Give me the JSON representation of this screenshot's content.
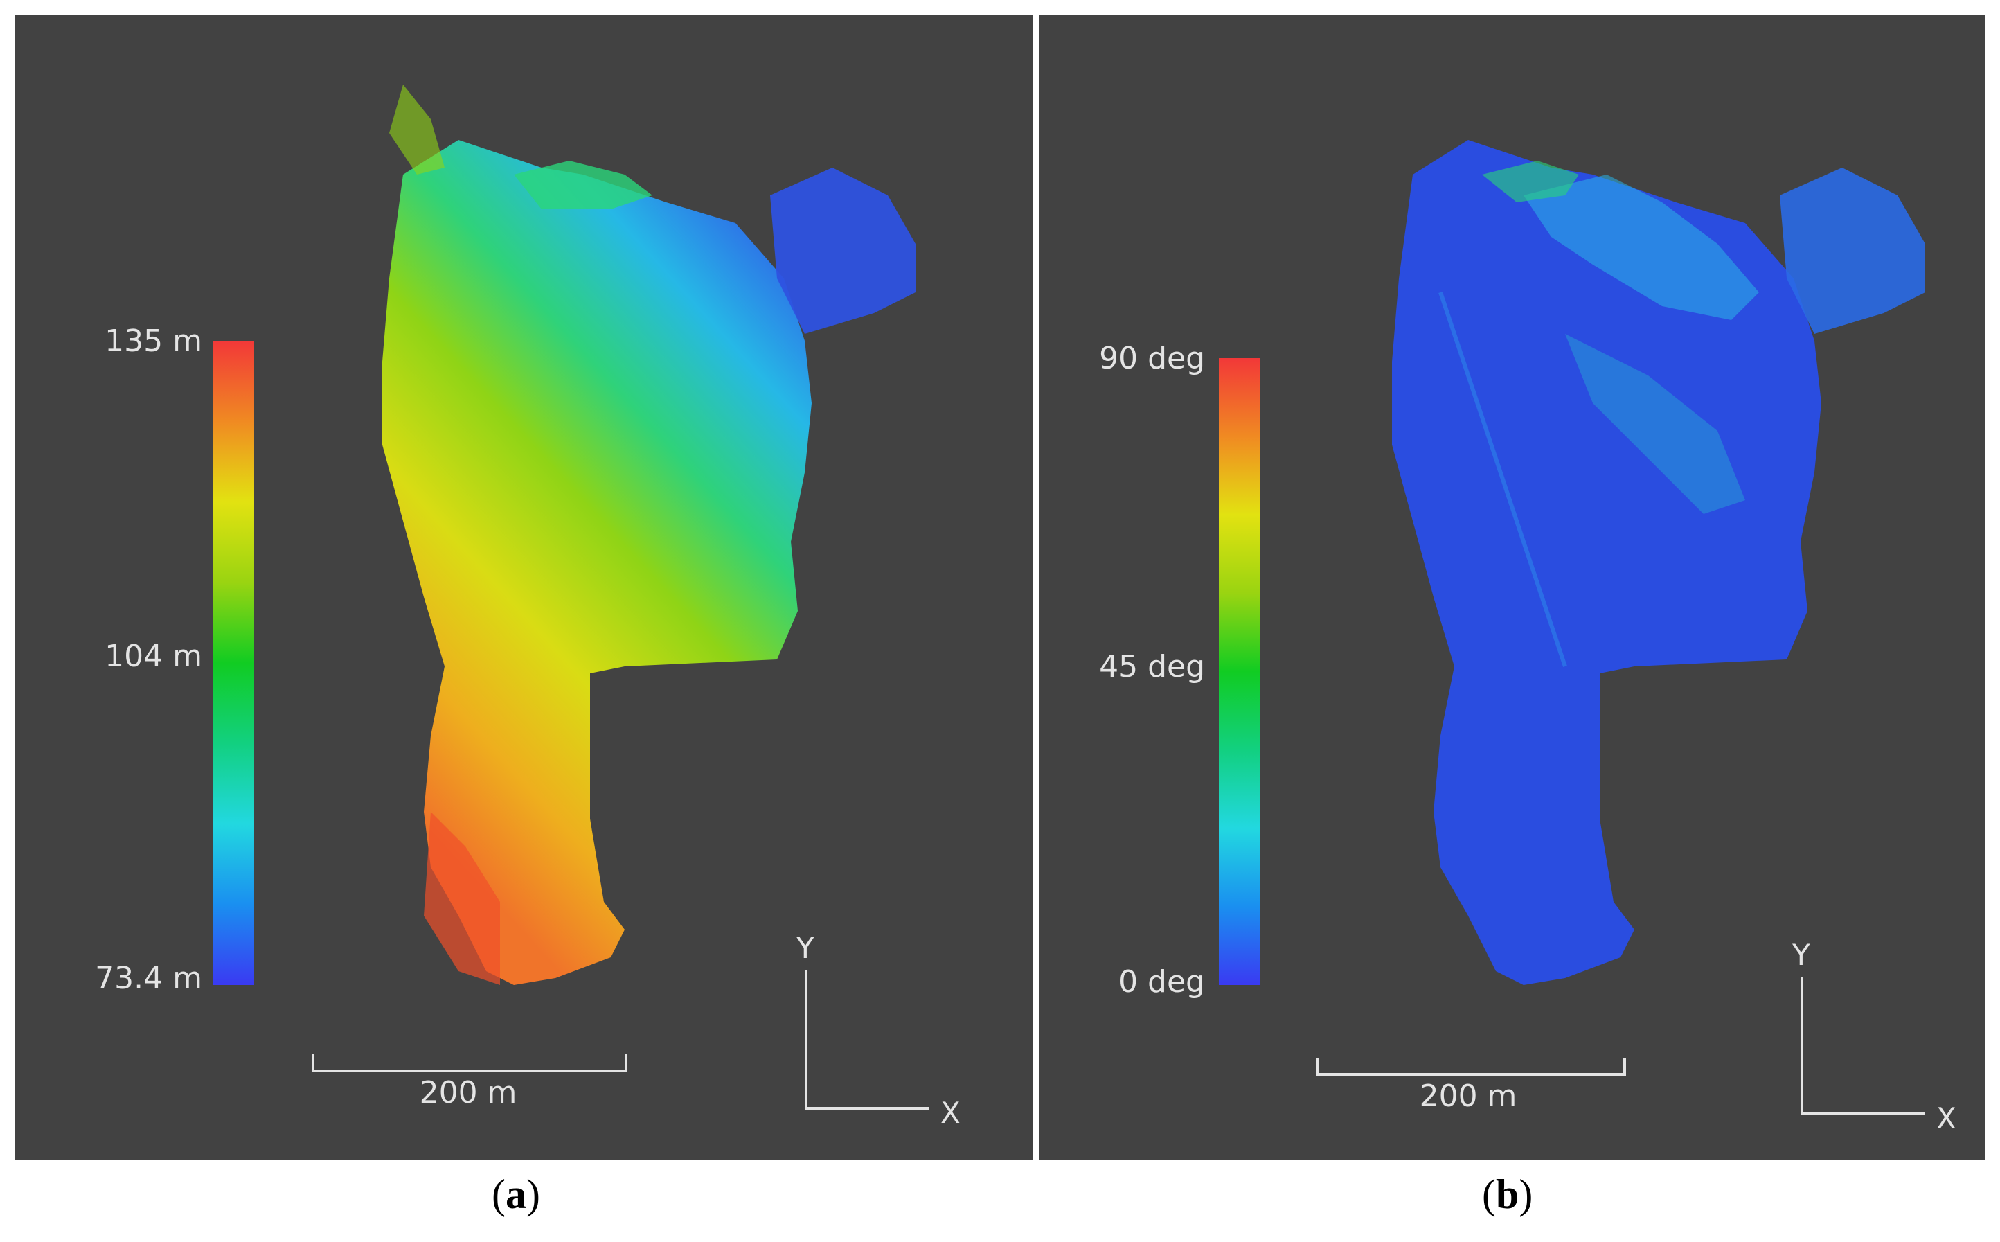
{
  "panel_a": {
    "caption_letter": "a",
    "colorbar": {
      "max_label": "135 m",
      "mid_label": "104 m",
      "min_label": "73.4 m"
    },
    "scale_bar_label": "200 m",
    "axis_y": "Y",
    "axis_x": "X",
    "colormap": [
      "#3a3af2",
      "#1a8ff0",
      "#22d8e0",
      "#12d080",
      "#11cc22",
      "#9ad411",
      "#e2e211",
      "#f09a22",
      "#f04a2a",
      "#f23838"
    ]
  },
  "panel_b": {
    "caption_letter": "b",
    "colorbar": {
      "max_label": "90 deg",
      "mid_label": "45 deg",
      "min_label": "0 deg"
    },
    "scale_bar_label": "200 m",
    "axis_y": "Y",
    "axis_x": "X",
    "colormap": [
      "#3a3af2",
      "#1a8ff0",
      "#22d8e0",
      "#12d080",
      "#11cc22",
      "#9ad411",
      "#e2e211",
      "#f09a22",
      "#f04a2a",
      "#f23838"
    ]
  }
}
